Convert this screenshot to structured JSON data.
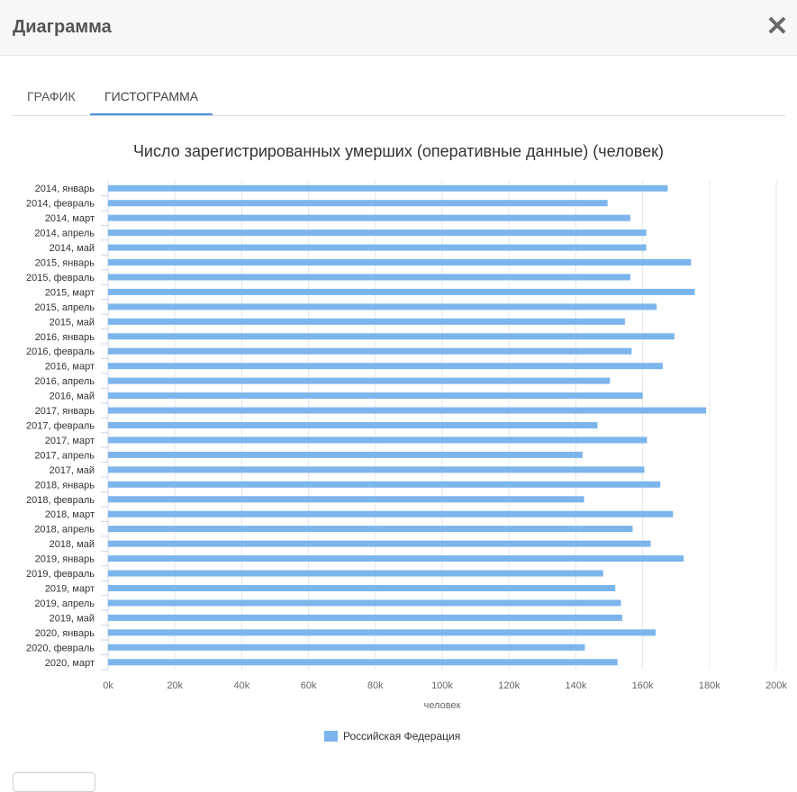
{
  "dialog": {
    "title": "Диаграмма",
    "close_label": "✕"
  },
  "tabs": [
    {
      "label": "ГРАФИК",
      "active": false
    },
    {
      "label": "ГИСТОГРАММА",
      "active": true
    }
  ],
  "chart_data": {
    "type": "bar",
    "orientation": "horizontal",
    "title": "Число зарегистрированных умерших (оперативные данные) (человек)",
    "xlabel": "человек",
    "ylabel": "",
    "xlim": [
      0,
      200000
    ],
    "xticks": [
      0,
      20000,
      40000,
      60000,
      80000,
      100000,
      120000,
      140000,
      160000,
      180000,
      200000
    ],
    "xtick_labels": [
      "0k",
      "20k",
      "40k",
      "60k",
      "80k",
      "100k",
      "120k",
      "140k",
      "160k",
      "180k",
      "200k"
    ],
    "grid": true,
    "legend_position": "bottom-center",
    "categories": [
      "2014, январь",
      "2014, февраль",
      "2014, март",
      "2014, апрель",
      "2014, май",
      "2015, январь",
      "2015, февраль",
      "2015, март",
      "2015, апрель",
      "2015, май",
      "2016, январь",
      "2016, февраль",
      "2016, март",
      "2016, апрель",
      "2016, май",
      "2017, январь",
      "2017, февраль",
      "2017, март",
      "2017, апрель",
      "2017, май",
      "2018, январь",
      "2018, февраль",
      "2018, март",
      "2018, апрель",
      "2018, май",
      "2019, январь",
      "2019, февраль",
      "2019, март",
      "2019, апрель",
      "2019, май",
      "2020, январь",
      "2020, февраль",
      "2020, март"
    ],
    "series": [
      {
        "name": "Российская Федерация",
        "color": "#7cb5ec",
        "values": [
          167500,
          149500,
          156300,
          161100,
          161100,
          174500,
          156300,
          175600,
          164200,
          154700,
          169500,
          156700,
          166000,
          150200,
          160000,
          179000,
          146500,
          161300,
          142000,
          160500,
          165300,
          142500,
          169100,
          157000,
          162400,
          172300,
          148200,
          151800,
          153500,
          153900,
          163900,
          142700,
          152500
        ]
      }
    ]
  }
}
